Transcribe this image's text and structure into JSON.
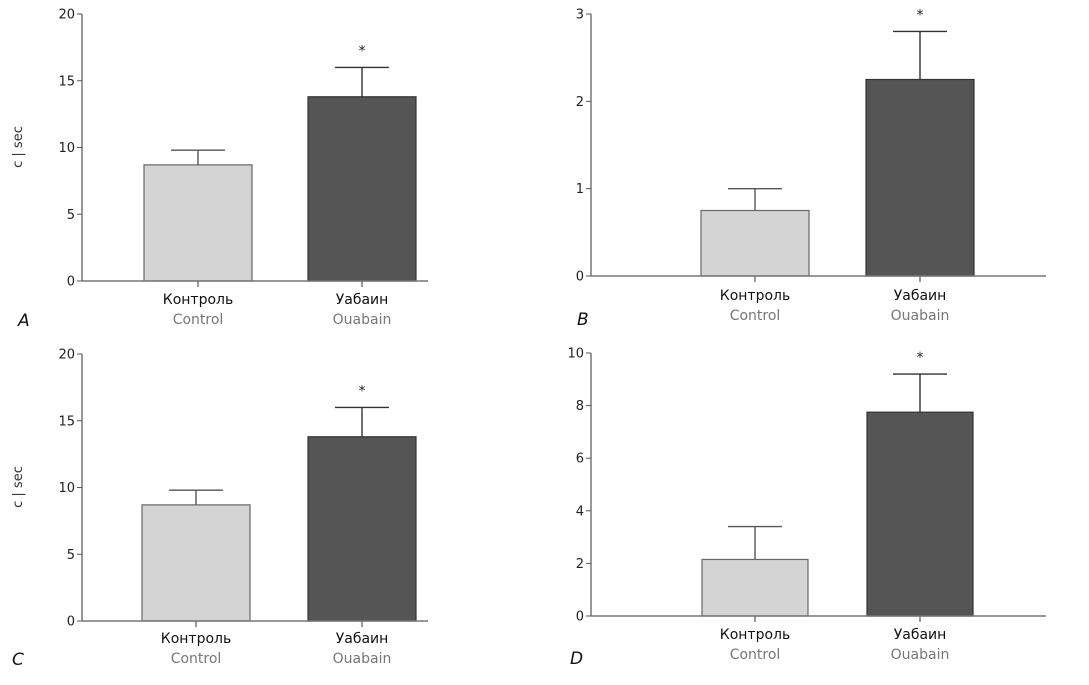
{
  "chart_data": [
    {
      "panel": "A",
      "type": "bar",
      "ylabel": "c | sec",
      "ylim": [
        0,
        20
      ],
      "yticks": [
        0,
        5,
        10,
        15,
        20
      ],
      "categories": [
        {
          "ru": "Контроль",
          "en": "Control"
        },
        {
          "ru": "Уабаин",
          "en": "Ouabain"
        }
      ],
      "values": [
        8.7,
        13.8
      ],
      "error_upper": [
        9.8,
        16.0
      ],
      "significance": [
        "",
        "*"
      ],
      "colors": [
        "#d4d4d4",
        "#555555"
      ]
    },
    {
      "panel": "B",
      "type": "bar",
      "ylabel": "",
      "ylim": [
        0,
        3
      ],
      "yticks": [
        0,
        1,
        2,
        3
      ],
      "categories": [
        {
          "ru": "Контроль",
          "en": "Control"
        },
        {
          "ru": "Уабаин",
          "en": "Ouabain"
        }
      ],
      "values": [
        0.75,
        2.25
      ],
      "error_upper": [
        1.0,
        2.8
      ],
      "significance": [
        "",
        "*"
      ],
      "colors": [
        "#d4d4d4",
        "#555555"
      ]
    },
    {
      "panel": "C",
      "type": "bar",
      "ylabel": "c | sec",
      "ylim": [
        0,
        20
      ],
      "yticks": [
        0,
        5,
        10,
        15,
        20
      ],
      "categories": [
        {
          "ru": "Контроль",
          "en": "Control"
        },
        {
          "ru": "Уабаин",
          "en": "Ouabain"
        }
      ],
      "values": [
        8.7,
        13.8
      ],
      "error_upper": [
        9.8,
        16.0
      ],
      "significance": [
        "",
        "*"
      ],
      "colors": [
        "#d4d4d4",
        "#555555"
      ]
    },
    {
      "panel": "D",
      "type": "bar",
      "ylabel": "",
      "ylim": [
        0,
        10
      ],
      "yticks": [
        0,
        2,
        4,
        6,
        8,
        10
      ],
      "categories": [
        {
          "ru": "Контроль",
          "en": "Control"
        },
        {
          "ru": "Уабаин",
          "en": "Ouabain"
        }
      ],
      "values": [
        2.15,
        7.75
      ],
      "error_upper": [
        3.4,
        9.2
      ],
      "significance": [
        "",
        "*"
      ],
      "colors": [
        "#d4d4d4",
        "#555555"
      ]
    }
  ]
}
